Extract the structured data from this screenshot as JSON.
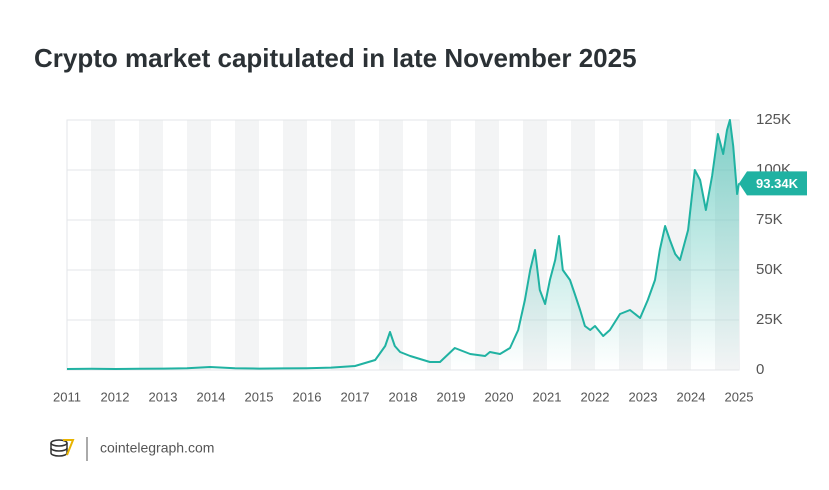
{
  "chart_data": {
    "type": "area",
    "title": "Crypto market capitulated in late November 2025",
    "source": "cointelegraph.com",
    "color": "#20b2a2",
    "x": [
      2011.0,
      2011.5,
      2012.0,
      2012.5,
      2013.0,
      2013.5,
      2013.98,
      2014.5,
      2015.0,
      2015.5,
      2016.0,
      2016.5,
      2017.0,
      2017.42,
      2017.63,
      2017.73,
      2017.83,
      2017.94,
      2018.15,
      2018.56,
      2018.77,
      2019.08,
      2019.4,
      2019.71,
      2019.81,
      2020.02,
      2020.23,
      2020.4,
      2020.54,
      2020.65,
      2020.75,
      2020.85,
      2020.96,
      2021.06,
      2021.17,
      2021.25,
      2021.33,
      2021.48,
      2021.58,
      2021.69,
      2021.79,
      2021.9,
      2022.0,
      2022.17,
      2022.31,
      2022.52,
      2022.73,
      2022.94,
      2023.1,
      2023.25,
      2023.35,
      2023.46,
      2023.56,
      2023.67,
      2023.77,
      2023.94,
      2024.08,
      2024.19,
      2024.31,
      2024.44,
      2024.56,
      2024.67,
      2024.75,
      2024.81,
      2024.88,
      2024.96,
      2025.0
    ],
    "values": [
      500,
      600,
      500,
      600,
      700,
      900,
      1500,
      900,
      700,
      800,
      900,
      1200,
      2000,
      5000,
      12000,
      19000,
      12000,
      9000,
      7000,
      4000,
      4000,
      11000,
      8000,
      7000,
      9000,
      8000,
      11000,
      20000,
      35000,
      50000,
      60000,
      40000,
      33000,
      45000,
      55000,
      67000,
      50000,
      45000,
      38000,
      30000,
      22000,
      20000,
      22000,
      17000,
      20000,
      28000,
      30000,
      26000,
      35000,
      45000,
      60000,
      72000,
      65000,
      58000,
      55000,
      70000,
      100000,
      95000,
      80000,
      97000,
      118000,
      108000,
      120000,
      125000,
      112000,
      88000,
      93340
    ],
    "xlim": [
      2011,
      2025
    ],
    "xticks": [
      2011,
      2012,
      2013,
      2014,
      2015,
      2016,
      2017,
      2018,
      2019,
      2020,
      2021,
      2022,
      2023,
      2024,
      2025
    ],
    "ylim": [
      0,
      125000
    ],
    "yticks": [
      {
        "value": 0,
        "label": "0"
      },
      {
        "value": 25000,
        "label": "25K"
      },
      {
        "value": 50000,
        "label": "50K"
      },
      {
        "value": 75000,
        "label": "75K"
      },
      {
        "value": 100000,
        "label": "100K"
      },
      {
        "value": 125000,
        "label": "125K"
      }
    ],
    "grid": true,
    "annotation": {
      "value": 93340,
      "label": "93.34K"
    }
  }
}
